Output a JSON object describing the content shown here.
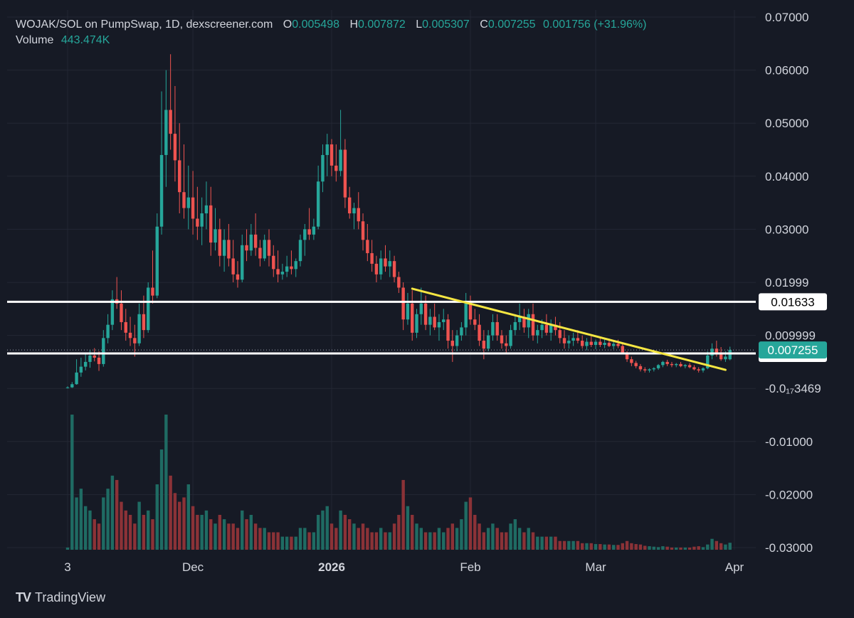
{
  "legend": {
    "symbol": "WOJAK/SOL on PumpSwap, 1D, dexscreener.com",
    "open_label": "O",
    "open": "0.005498",
    "high_label": "H",
    "high": "0.007872",
    "low_label": "L",
    "low": "0.005307",
    "close_label": "C",
    "close": "0.007255",
    "change": "0.001756 (+31.96%)",
    "volume_label": "Volume",
    "volume": "443.474K"
  },
  "brand": {
    "name": "TradingView",
    "logo": "TV"
  },
  "colors": {
    "background": "#161a25",
    "grid": "#232734",
    "up": "#26a69a",
    "down": "#ef5350",
    "up_volume": "#1f6b63",
    "down_volume": "#8b3237",
    "level_line": "#ffffff",
    "trend_line": "#f5e642",
    "text": "#d1d4dc"
  },
  "chart_data": {
    "type": "candlestick",
    "title": "WOJAK/SOL on PumpSwap, 1D, dexscreener.com",
    "y_axis": {
      "ylim": [
        -0.03,
        0.07
      ],
      "ticks": [
        {
          "v": 0.07,
          "label": "0.07000"
        },
        {
          "v": 0.06,
          "label": "0.06000"
        },
        {
          "v": 0.05,
          "label": "0.05000"
        },
        {
          "v": 0.04,
          "label": "0.04000"
        },
        {
          "v": 0.03,
          "label": "0.03000"
        },
        {
          "v": 0.01999,
          "label": "0.01999"
        },
        {
          "v": 0.009999,
          "label": "0.009999"
        },
        {
          "v": -3e-06,
          "label": "-0.0₁₇3469"
        },
        {
          "v": -0.01,
          "label": "-0.01000"
        },
        {
          "v": -0.02,
          "label": "-0.02000"
        },
        {
          "v": -0.03,
          "label": "-0.03000"
        }
      ]
    },
    "x_axis": {
      "ticks": [
        {
          "date": "2025-11-03",
          "label": "3",
          "bold": false
        },
        {
          "date": "2025-12-01",
          "label": "Dec",
          "bold": false
        },
        {
          "date": "2026-01-01",
          "label": "2026",
          "bold": true
        },
        {
          "date": "2026-02-01",
          "label": "Feb",
          "bold": false
        },
        {
          "date": "2026-03-01",
          "label": "Mar",
          "bold": false
        },
        {
          "date": "2026-04-01",
          "label": "Apr",
          "bold": false
        }
      ]
    },
    "grid": true,
    "horizontal_levels": [
      {
        "value": 0.01633,
        "label": "0.01633"
      },
      {
        "value": 0.00659,
        "label": "0.006590"
      }
    ],
    "last_price": {
      "value": 0.007255,
      "label": "0.007255"
    },
    "trendline": {
      "start": {
        "date": "2026-01-19",
        "value": 0.0188
      },
      "end": {
        "date": "2026-03-30",
        "value": 0.0035
      }
    },
    "candles_ohlc": [
      [
        "2025-11-03",
        0.0001,
        0.0004,
        0.0,
        0.0002,
        0.5
      ],
      [
        "2025-11-04",
        0.0002,
        0.0012,
        0.0001,
        0.0008,
        31
      ],
      [
        "2025-11-05",
        0.0008,
        0.0055,
        0.0007,
        0.003,
        12
      ],
      [
        "2025-11-06",
        0.003,
        0.0058,
        0.0022,
        0.0041,
        14
      ],
      [
        "2025-11-07",
        0.0041,
        0.0065,
        0.0034,
        0.005,
        10
      ],
      [
        "2025-11-08",
        0.005,
        0.0072,
        0.0039,
        0.0062,
        9
      ],
      [
        "2025-11-09",
        0.0062,
        0.0076,
        0.0051,
        0.0058,
        7
      ],
      [
        "2025-11-10",
        0.0058,
        0.007,
        0.0033,
        0.0046,
        6
      ],
      [
        "2025-11-11",
        0.0046,
        0.011,
        0.0041,
        0.0095,
        12
      ],
      [
        "2025-11-12",
        0.0095,
        0.014,
        0.0085,
        0.012,
        14
      ],
      [
        "2025-11-13",
        0.012,
        0.0185,
        0.011,
        0.0168,
        17
      ],
      [
        "2025-11-14",
        0.0168,
        0.021,
        0.015,
        0.016,
        16
      ],
      [
        "2025-11-15",
        0.016,
        0.0185,
        0.011,
        0.0125,
        11
      ],
      [
        "2025-11-16",
        0.0125,
        0.015,
        0.009,
        0.0105,
        9
      ],
      [
        "2025-11-17",
        0.0105,
        0.0135,
        0.008,
        0.0095,
        8
      ],
      [
        "2025-11-18",
        0.0095,
        0.012,
        0.006,
        0.0085,
        6
      ],
      [
        "2025-11-19",
        0.0085,
        0.016,
        0.008,
        0.014,
        11
      ],
      [
        "2025-11-20",
        0.014,
        0.0175,
        0.0095,
        0.011,
        8
      ],
      [
        "2025-11-21",
        0.011,
        0.02,
        0.0105,
        0.019,
        9
      ],
      [
        "2025-11-22",
        0.019,
        0.026,
        0.016,
        0.0175,
        7
      ],
      [
        "2025-11-23",
        0.0175,
        0.033,
        0.017,
        0.0305,
        15
      ],
      [
        "2025-11-24",
        0.0305,
        0.056,
        0.029,
        0.044,
        23
      ],
      [
        "2025-11-25",
        0.044,
        0.06,
        0.038,
        0.0525,
        31
      ],
      [
        "2025-11-26",
        0.0525,
        0.063,
        0.045,
        0.048,
        17
      ],
      [
        "2025-11-27",
        0.048,
        0.057,
        0.039,
        0.043,
        13
      ],
      [
        "2025-11-28",
        0.043,
        0.05,
        0.033,
        0.037,
        11
      ],
      [
        "2025-11-29",
        0.037,
        0.046,
        0.032,
        0.034,
        12
      ],
      [
        "2025-11-30",
        0.034,
        0.042,
        0.03,
        0.036,
        15
      ],
      [
        "2025-12-01",
        0.036,
        0.041,
        0.029,
        0.032,
        10
      ],
      [
        "2025-12-02",
        0.032,
        0.038,
        0.028,
        0.0305,
        8
      ],
      [
        "2025-12-03",
        0.0305,
        0.036,
        0.027,
        0.033,
        8
      ],
      [
        "2025-12-04",
        0.033,
        0.039,
        0.03,
        0.0345,
        9
      ],
      [
        "2025-12-05",
        0.0345,
        0.038,
        0.025,
        0.0275,
        7
      ],
      [
        "2025-12-06",
        0.0275,
        0.034,
        0.026,
        0.03,
        6
      ],
      [
        "2025-12-07",
        0.03,
        0.032,
        0.023,
        0.025,
        8
      ],
      [
        "2025-12-08",
        0.025,
        0.03,
        0.022,
        0.028,
        7
      ],
      [
        "2025-12-09",
        0.028,
        0.031,
        0.023,
        0.0245,
        6
      ],
      [
        "2025-12-10",
        0.0245,
        0.028,
        0.02,
        0.0215,
        6
      ],
      [
        "2025-12-11",
        0.0215,
        0.024,
        0.019,
        0.0205,
        5
      ],
      [
        "2025-12-12",
        0.0205,
        0.029,
        0.02,
        0.027,
        9
      ],
      [
        "2025-12-13",
        0.027,
        0.03,
        0.024,
        0.026,
        7
      ],
      [
        "2025-12-14",
        0.026,
        0.031,
        0.025,
        0.029,
        8
      ],
      [
        "2025-12-15",
        0.029,
        0.033,
        0.025,
        0.0265,
        6
      ],
      [
        "2025-12-16",
        0.0265,
        0.028,
        0.023,
        0.0245,
        5
      ],
      [
        "2025-12-17",
        0.0245,
        0.029,
        0.024,
        0.028,
        5
      ],
      [
        "2025-12-18",
        0.028,
        0.03,
        0.023,
        0.025,
        4
      ],
      [
        "2025-12-19",
        0.025,
        0.027,
        0.021,
        0.0225,
        4
      ],
      [
        "2025-12-20",
        0.0225,
        0.026,
        0.02,
        0.0215,
        4
      ],
      [
        "2025-12-21",
        0.0215,
        0.0235,
        0.0205,
        0.022,
        3
      ],
      [
        "2025-12-22",
        0.022,
        0.025,
        0.021,
        0.023,
        3
      ],
      [
        "2025-12-23",
        0.023,
        0.026,
        0.0215,
        0.0225,
        3
      ],
      [
        "2025-12-24",
        0.0225,
        0.0245,
        0.021,
        0.024,
        3
      ],
      [
        "2025-12-25",
        0.024,
        0.029,
        0.023,
        0.028,
        5
      ],
      [
        "2025-12-26",
        0.028,
        0.031,
        0.025,
        0.03,
        5
      ],
      [
        "2025-12-27",
        0.03,
        0.034,
        0.028,
        0.029,
        4
      ],
      [
        "2025-12-28",
        0.029,
        0.032,
        0.028,
        0.0305,
        4
      ],
      [
        "2025-12-29",
        0.0305,
        0.042,
        0.03,
        0.039,
        8
      ],
      [
        "2025-12-30",
        0.039,
        0.046,
        0.037,
        0.044,
        9
      ],
      [
        "2025-12-31",
        0.044,
        0.048,
        0.04,
        0.046,
        10
      ],
      [
        "2026-01-01",
        0.046,
        0.047,
        0.04,
        0.042,
        6
      ],
      [
        "2026-01-02",
        0.042,
        0.046,
        0.039,
        0.041,
        5
      ],
      [
        "2026-01-03",
        0.041,
        0.0525,
        0.04,
        0.045,
        9
      ],
      [
        "2026-01-04",
        0.045,
        0.047,
        0.034,
        0.036,
        8
      ],
      [
        "2026-01-05",
        0.036,
        0.038,
        0.032,
        0.033,
        7
      ],
      [
        "2026-01-06",
        0.033,
        0.035,
        0.03,
        0.034,
        6
      ],
      [
        "2026-01-07",
        0.034,
        0.037,
        0.03,
        0.0315,
        5
      ],
      [
        "2026-01-08",
        0.0315,
        0.033,
        0.026,
        0.028,
        6
      ],
      [
        "2026-01-09",
        0.028,
        0.031,
        0.024,
        0.0255,
        5
      ],
      [
        "2026-01-10",
        0.0255,
        0.028,
        0.022,
        0.0235,
        4
      ],
      [
        "2026-01-11",
        0.0235,
        0.025,
        0.02,
        0.0215,
        4
      ],
      [
        "2026-01-12",
        0.0215,
        0.026,
        0.0205,
        0.0245,
        5
      ],
      [
        "2026-01-13",
        0.0245,
        0.027,
        0.022,
        0.023,
        4
      ],
      [
        "2026-01-14",
        0.023,
        0.026,
        0.021,
        0.024,
        4
      ],
      [
        "2026-01-15",
        0.024,
        0.025,
        0.02,
        0.021,
        6
      ],
      [
        "2026-01-16",
        0.021,
        0.022,
        0.018,
        0.019,
        8
      ],
      [
        "2026-01-17",
        0.019,
        0.02,
        0.011,
        0.013,
        16
      ],
      [
        "2026-01-18",
        0.013,
        0.018,
        0.012,
        0.016,
        10
      ],
      [
        "2026-01-19",
        0.016,
        0.0185,
        0.009,
        0.0105,
        8
      ],
      [
        "2026-01-20",
        0.0105,
        0.015,
        0.0095,
        0.014,
        6
      ],
      [
        "2026-01-21",
        0.014,
        0.019,
        0.012,
        0.016,
        5
      ],
      [
        "2026-01-22",
        0.016,
        0.0175,
        0.011,
        0.012,
        4
      ],
      [
        "2026-01-23",
        0.012,
        0.015,
        0.01,
        0.0135,
        4
      ],
      [
        "2026-01-24",
        0.0135,
        0.016,
        0.011,
        0.0115,
        4
      ],
      [
        "2026-01-25",
        0.0115,
        0.014,
        0.009,
        0.0125,
        5
      ],
      [
        "2026-01-26",
        0.0125,
        0.015,
        0.011,
        0.013,
        4
      ],
      [
        "2026-01-27",
        0.013,
        0.014,
        0.0075,
        0.009,
        5
      ],
      [
        "2026-01-28",
        0.009,
        0.011,
        0.005,
        0.008,
        6
      ],
      [
        "2026-01-29",
        0.008,
        0.011,
        0.007,
        0.01,
        5
      ],
      [
        "2026-01-30",
        0.01,
        0.0125,
        0.009,
        0.0115,
        7
      ],
      [
        "2026-01-31",
        0.0115,
        0.018,
        0.01,
        0.016,
        11
      ],
      [
        "2026-02-01",
        0.016,
        0.0175,
        0.012,
        0.013,
        12
      ],
      [
        "2026-02-02",
        0.013,
        0.015,
        0.011,
        0.012,
        8
      ],
      [
        "2026-02-03",
        0.012,
        0.014,
        0.008,
        0.009,
        6
      ],
      [
        "2026-02-04",
        0.009,
        0.011,
        0.0055,
        0.0075,
        4
      ],
      [
        "2026-02-05",
        0.0075,
        0.011,
        0.007,
        0.01,
        5
      ],
      [
        "2026-02-06",
        0.01,
        0.014,
        0.009,
        0.0125,
        6
      ],
      [
        "2026-02-07",
        0.0125,
        0.014,
        0.009,
        0.01,
        5
      ],
      [
        "2026-02-08",
        0.01,
        0.011,
        0.0075,
        0.0085,
        4
      ],
      [
        "2026-02-09",
        0.0085,
        0.01,
        0.0065,
        0.008,
        4
      ],
      [
        "2026-02-10",
        0.008,
        0.012,
        0.0075,
        0.011,
        6
      ],
      [
        "2026-02-11",
        0.011,
        0.014,
        0.01,
        0.0125,
        7
      ],
      [
        "2026-02-12",
        0.0125,
        0.016,
        0.011,
        0.0135,
        5
      ],
      [
        "2026-02-13",
        0.0135,
        0.015,
        0.0105,
        0.0115,
        4
      ],
      [
        "2026-02-14",
        0.0115,
        0.015,
        0.0095,
        0.014,
        5
      ],
      [
        "2026-02-15",
        0.014,
        0.016,
        0.009,
        0.01,
        4
      ],
      [
        "2026-02-16",
        0.01,
        0.012,
        0.0085,
        0.011,
        3
      ],
      [
        "2026-02-17",
        0.011,
        0.013,
        0.0095,
        0.012,
        3
      ],
      [
        "2026-02-18",
        0.012,
        0.014,
        0.01,
        0.0105,
        3
      ],
      [
        "2026-02-19",
        0.0105,
        0.013,
        0.009,
        0.012,
        3
      ],
      [
        "2026-02-20",
        0.012,
        0.0135,
        0.01,
        0.011,
        3
      ],
      [
        "2026-02-21",
        0.011,
        0.0125,
        0.0085,
        0.0095,
        2
      ],
      [
        "2026-02-22",
        0.0095,
        0.011,
        0.0075,
        0.0085,
        2
      ],
      [
        "2026-02-23",
        0.0085,
        0.01,
        0.0075,
        0.009,
        2
      ],
      [
        "2026-02-24",
        0.009,
        0.0105,
        0.008,
        0.0095,
        2
      ],
      [
        "2026-02-25",
        0.0095,
        0.011,
        0.0085,
        0.009,
        2
      ],
      [
        "2026-02-26",
        0.009,
        0.01,
        0.0075,
        0.008,
        1.5
      ],
      [
        "2026-02-27",
        0.008,
        0.0095,
        0.0072,
        0.0088,
        1.5
      ],
      [
        "2026-02-28",
        0.0088,
        0.0098,
        0.0078,
        0.0082,
        1.5
      ],
      [
        "2026-03-01",
        0.0082,
        0.0092,
        0.0074,
        0.0088,
        1.3
      ],
      [
        "2026-03-02",
        0.0088,
        0.0096,
        0.0078,
        0.0082,
        1.3
      ],
      [
        "2026-03-03",
        0.0082,
        0.0092,
        0.0076,
        0.0086,
        1.2
      ],
      [
        "2026-03-04",
        0.0086,
        0.0094,
        0.0078,
        0.008,
        1.2
      ],
      [
        "2026-03-05",
        0.008,
        0.009,
        0.0074,
        0.0084,
        1.1
      ],
      [
        "2026-03-06",
        0.0084,
        0.0092,
        0.0076,
        0.008,
        1.1
      ],
      [
        "2026-03-07",
        0.008,
        0.0084,
        0.0065,
        0.0068,
        1.5
      ],
      [
        "2026-03-08",
        0.0068,
        0.007,
        0.005,
        0.0055,
        2
      ],
      [
        "2026-03-09",
        0.0055,
        0.006,
        0.0042,
        0.0048,
        1.5
      ],
      [
        "2026-03-10",
        0.0048,
        0.0052,
        0.0038,
        0.0042,
        1.3
      ],
      [
        "2026-03-11",
        0.0042,
        0.0046,
        0.0032,
        0.0036,
        1.2
      ],
      [
        "2026-03-12",
        0.0036,
        0.004,
        0.003,
        0.0034,
        0.9
      ],
      [
        "2026-03-13",
        0.0034,
        0.0038,
        0.003,
        0.0036,
        0.8
      ],
      [
        "2026-03-14",
        0.0036,
        0.004,
        0.0032,
        0.0038,
        0.7
      ],
      [
        "2026-03-15",
        0.0038,
        0.0046,
        0.0035,
        0.0044,
        0.6
      ],
      [
        "2026-03-16",
        0.0044,
        0.0052,
        0.004,
        0.005,
        0.8
      ],
      [
        "2026-03-17",
        0.005,
        0.0054,
        0.0042,
        0.0046,
        0.7
      ],
      [
        "2026-03-18",
        0.0046,
        0.005,
        0.004,
        0.0044,
        0.5
      ],
      [
        "2026-03-19",
        0.0044,
        0.0048,
        0.004,
        0.0046,
        0.5
      ],
      [
        "2026-03-20",
        0.0046,
        0.005,
        0.004,
        0.0042,
        0.5
      ],
      [
        "2026-03-21",
        0.0042,
        0.0046,
        0.0038,
        0.0044,
        0.5
      ],
      [
        "2026-03-22",
        0.0044,
        0.0048,
        0.0038,
        0.004,
        0.5
      ],
      [
        "2026-03-23",
        0.004,
        0.0044,
        0.0034,
        0.0036,
        0.7
      ],
      [
        "2026-03-24",
        0.0036,
        0.004,
        0.003,
        0.0034,
        0.8
      ],
      [
        "2026-03-25",
        0.0034,
        0.004,
        0.003,
        0.0038,
        0.6
      ],
      [
        "2026-03-26",
        0.0038,
        0.007,
        0.0036,
        0.0062,
        1.2
      ],
      [
        "2026-03-27",
        0.0062,
        0.0085,
        0.0055,
        0.0075,
        2.5
      ],
      [
        "2026-03-28",
        0.0075,
        0.009,
        0.006,
        0.0068,
        2.0
      ],
      [
        "2026-03-29",
        0.0068,
        0.0078,
        0.0052,
        0.0055,
        1.5
      ],
      [
        "2026-03-30",
        0.0055,
        0.007,
        0.005,
        0.006,
        1.2
      ],
      [
        "2026-03-31",
        0.005498,
        0.007872,
        0.005307,
        0.007255,
        1.6
      ]
    ],
    "ohlc_columns": [
      "date",
      "open",
      "high",
      "low",
      "close",
      "volume_relative"
    ]
  }
}
